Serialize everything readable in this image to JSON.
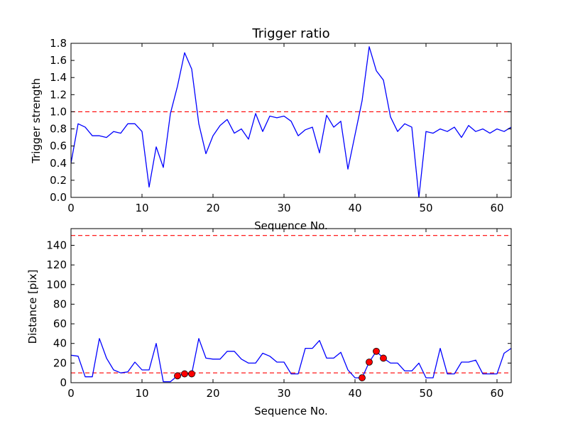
{
  "chart_data": [
    {
      "type": "line",
      "title": "Trigger ratio",
      "xlabel": "Sequence No.",
      "ylabel": "Trigger strength",
      "xlim": [
        0,
        62
      ],
      "ylim": [
        0,
        1.8
      ],
      "xticks": [
        0,
        10,
        20,
        30,
        40,
        50,
        60
      ],
      "xtick_labels": [
        "0",
        "10",
        "20",
        "30",
        "40",
        "50",
        "60"
      ],
      "yticks": [
        0.0,
        0.2,
        0.4,
        0.6,
        0.8,
        1.0,
        1.2,
        1.4,
        1.6,
        1.8
      ],
      "ytick_labels": [
        "0.0",
        "0.2",
        "0.4",
        "0.6",
        "0.8",
        "1.0",
        "1.2",
        "1.4",
        "1.6",
        "1.8"
      ],
      "grid": false,
      "series": [
        {
          "color": "#0000ff",
          "style": "solid",
          "x": [
            0,
            1,
            2,
            3,
            4,
            5,
            6,
            7,
            8,
            9,
            10,
            11,
            12,
            13,
            14,
            15,
            16,
            17,
            18,
            19,
            20,
            21,
            22,
            23,
            24,
            25,
            26,
            27,
            28,
            29,
            30,
            31,
            32,
            33,
            34,
            35,
            36,
            37,
            38,
            39,
            40,
            41,
            42,
            43,
            44,
            45,
            46,
            47,
            48,
            49,
            50,
            51,
            52,
            53,
            54,
            55,
            56,
            57,
            58,
            59,
            60,
            61,
            62
          ],
          "y": [
            0.4,
            0.86,
            0.82,
            0.72,
            0.72,
            0.7,
            0.77,
            0.75,
            0.86,
            0.86,
            0.77,
            0.12,
            0.59,
            0.35,
            0.98,
            1.3,
            1.69,
            1.5,
            0.86,
            0.51,
            0.72,
            0.84,
            0.91,
            0.75,
            0.8,
            0.68,
            0.98,
            0.77,
            0.95,
            0.93,
            0.95,
            0.89,
            0.72,
            0.79,
            0.82,
            0.52,
            0.96,
            0.82,
            0.89,
            0.33,
            0.73,
            1.13,
            1.76,
            1.48,
            1.37,
            0.94,
            0.77,
            0.86,
            0.82,
            0.0,
            0.77,
            0.75,
            0.8,
            0.77,
            0.82,
            0.7,
            0.84,
            0.77,
            0.8,
            0.75,
            0.8,
            0.77,
            0.82
          ]
        }
      ],
      "hlines": [
        {
          "y": 1.0,
          "color": "#ff0000",
          "style": "dashed"
        }
      ]
    },
    {
      "type": "line",
      "title": "",
      "xlabel": "Sequence No.",
      "ylabel": "Distance [pix]",
      "xlim": [
        0,
        62
      ],
      "ylim": [
        0,
        157
      ],
      "xticks": [
        0,
        10,
        20,
        30,
        40,
        50,
        60
      ],
      "xtick_labels": [
        "0",
        "10",
        "20",
        "30",
        "40",
        "50",
        "60"
      ],
      "yticks": [
        0,
        20,
        40,
        60,
        80,
        100,
        120,
        140
      ],
      "ytick_labels": [
        "0",
        "20",
        "40",
        "60",
        "80",
        "100",
        "120",
        "140"
      ],
      "grid": false,
      "series": [
        {
          "color": "#0000ff",
          "style": "solid",
          "x": [
            0,
            1,
            2,
            3,
            4,
            5,
            6,
            7,
            8,
            9,
            10,
            11,
            12,
            13,
            14,
            15,
            16,
            17,
            18,
            19,
            20,
            21,
            22,
            23,
            24,
            25,
            26,
            27,
            28,
            29,
            30,
            31,
            32,
            33,
            34,
            35,
            36,
            37,
            38,
            39,
            40,
            41,
            42,
            43,
            44,
            45,
            46,
            47,
            48,
            49,
            50,
            51,
            52,
            53,
            54,
            55,
            56,
            57,
            58,
            59,
            60,
            61,
            62
          ],
          "y": [
            28,
            27,
            6,
            6,
            45,
            25,
            13,
            10,
            11,
            21,
            13,
            13,
            40,
            1,
            1,
            7,
            9,
            9,
            45,
            25,
            24,
            24,
            32,
            32,
            24,
            20,
            20,
            30,
            27,
            21,
            21,
            9,
            9,
            35,
            35,
            43,
            25,
            25,
            31,
            13,
            5,
            5,
            21,
            32,
            25,
            20,
            20,
            12,
            12,
            20,
            5,
            5,
            35,
            9,
            9,
            21,
            21,
            23,
            9,
            9,
            9,
            30,
            35
          ]
        },
        {
          "color": "#ff0000",
          "style": "markers",
          "x": [
            15,
            16,
            17,
            41,
            42,
            43,
            44
          ],
          "y": [
            7,
            9,
            9,
            5,
            21,
            32,
            25
          ]
        }
      ],
      "hlines": [
        {
          "y": 150,
          "color": "#ff0000",
          "style": "dashed"
        },
        {
          "y": 10,
          "color": "#ff0000",
          "style": "dashed"
        }
      ]
    }
  ]
}
